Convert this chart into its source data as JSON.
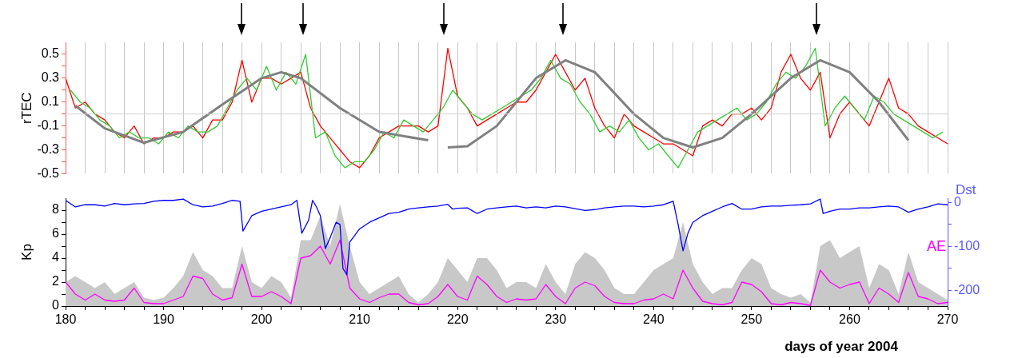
{
  "chart_data": [
    {
      "type": "line",
      "ylabel": "rTEC",
      "xlim": [
        180,
        270
      ],
      "xticks": [
        180,
        182,
        184,
        186,
        188,
        190,
        192,
        194,
        196,
        198,
        200,
        202,
        204,
        206,
        208,
        210,
        212,
        214,
        216,
        218,
        220,
        222,
        224,
        226,
        228,
        230,
        232,
        234,
        236,
        238,
        240,
        242,
        244,
        246,
        248,
        250,
        252,
        254,
        256,
        258,
        260,
        262,
        264,
        266,
        268,
        270
      ],
      "ylim": [
        -0.5,
        0.6
      ],
      "yticks": [
        -0.5,
        {
          "value": -0.4,
          "label": null
        },
        -0.3,
        {
          "value": -0.2,
          "label": null
        },
        -0.1,
        {
          "value": 0,
          "label": null
        },
        0.1,
        {
          "value": 0.2,
          "label": null
        },
        0.3,
        {
          "value": 0.4,
          "label": null
        },
        0.5
      ],
      "tick_labels": "y",
      "grid": "x",
      "ref_lines": [
        {
          "axis": "y",
          "value": 0,
          "color": "#d0d0d0"
        }
      ],
      "series": [
        {
          "color": "#ff0000",
          "x": [
            180,
            181,
            182,
            183,
            184,
            185,
            186,
            187,
            188,
            189,
            190,
            191,
            192,
            193,
            194,
            195,
            196,
            197,
            198,
            199,
            200,
            201,
            202,
            203,
            204,
            205,
            206,
            207,
            208,
            209,
            210,
            211,
            212,
            213,
            214,
            215,
            216,
            217,
            218,
            219,
            220,
            221,
            222,
            223,
            224,
            225,
            226,
            227,
            228,
            229,
            230,
            231,
            232,
            233,
            234,
            235,
            236,
            237,
            238,
            239,
            240,
            241,
            242,
            243,
            244,
            245,
            246,
            247,
            248,
            249,
            250,
            251,
            252,
            253,
            254,
            255,
            256,
            257,
            258,
            259,
            260,
            261,
            262,
            263,
            264,
            265,
            266,
            267,
            268,
            269,
            270
          ],
          "values": [
            0.3,
            0.05,
            0.1,
            0.0,
            -0.05,
            -0.15,
            -0.2,
            -0.1,
            -0.25,
            -0.2,
            -0.2,
            -0.15,
            -0.15,
            -0.1,
            -0.2,
            -0.05,
            -0.05,
            0.1,
            0.45,
            0.1,
            0.3,
            0.3,
            0.25,
            0.3,
            0.35,
            0.05,
            -0.1,
            -0.2,
            -0.3,
            -0.4,
            -0.45,
            -0.35,
            -0.2,
            -0.15,
            -0.1,
            -0.1,
            -0.1,
            -0.15,
            -0.1,
            0.55,
            0.15,
            0.05,
            -0.1,
            -0.05,
            0.0,
            0.05,
            0.1,
            0.1,
            0.2,
            0.35,
            0.5,
            0.35,
            0.2,
            0.3,
            0.05,
            -0.1,
            -0.2,
            0.0,
            -0.1,
            -0.15,
            -0.2,
            -0.25,
            -0.25,
            -0.3,
            -0.35,
            -0.1,
            -0.05,
            -0.1,
            0.0,
            0.0,
            0.05,
            -0.05,
            0.05,
            0.35,
            0.5,
            0.3,
            0.2,
            0.35,
            -0.2,
            0.0,
            0.1,
            0.0,
            -0.1,
            0.1,
            0.3,
            0.05,
            0.0,
            -0.1,
            -0.15,
            -0.2,
            -0.25
          ]
        },
        {
          "color": "#33cc33",
          "x": [
            180.5,
            181.5,
            182.5,
            183.5,
            184.5,
            185.5,
            186.5,
            187.5,
            188.5,
            189.5,
            190.5,
            191.5,
            192.5,
            193.5,
            194.5,
            195.5,
            196.5,
            197.5,
            198.5,
            199.5,
            200.5,
            201.5,
            202.5,
            203.5,
            204.5,
            205.5,
            206.5,
            207.5,
            208.5,
            209.5,
            210.5,
            211.5,
            212.5,
            213.5,
            214.5,
            215.5,
            216.5,
            217.5,
            218.5,
            219.5,
            220.5,
            221.5,
            222.5,
            223.5,
            224.5,
            225.5,
            226.5,
            227.5,
            228.5,
            229.5,
            230.5,
            231.5,
            232.5,
            233.5,
            234.5,
            235.5,
            236.5,
            237.5,
            238.5,
            239.5,
            240.5,
            241.5,
            242.5,
            243.5,
            244.5,
            245.5,
            246.5,
            247.5,
            248.5,
            249.5,
            250.5,
            251.5,
            252.5,
            253.5,
            254.5,
            255.5,
            256.5,
            257.5,
            258.5,
            259.5,
            260.5,
            261.5,
            262.5,
            263.5,
            264.5,
            265.5,
            266.5,
            267.5,
            268.5,
            269.5
          ],
          "values": [
            0.2,
            0.1,
            0.05,
            -0.05,
            -0.1,
            -0.2,
            -0.15,
            -0.2,
            -0.2,
            -0.25,
            -0.15,
            -0.2,
            -0.1,
            -0.15,
            -0.15,
            -0.1,
            0.05,
            0.2,
            0.3,
            0.2,
            0.4,
            0.2,
            0.35,
            0.25,
            0.5,
            -0.2,
            -0.15,
            -0.35,
            -0.45,
            -0.4,
            -0.4,
            -0.3,
            -0.15,
            -0.2,
            -0.05,
            -0.1,
            -0.15,
            -0.05,
            0.05,
            0.2,
            0.1,
            0.0,
            -0.05,
            0.0,
            0.05,
            0.1,
            0.15,
            0.2,
            0.3,
            0.45,
            0.3,
            0.25,
            0.1,
            0.0,
            -0.15,
            -0.1,
            -0.15,
            -0.05,
            -0.2,
            -0.3,
            -0.25,
            -0.35,
            -0.45,
            -0.3,
            -0.15,
            -0.1,
            -0.05,
            0.0,
            0.05,
            -0.05,
            0.0,
            0.1,
            0.25,
            0.35,
            0.3,
            0.4,
            0.55,
            -0.1,
            0.05,
            0.15,
            0.05,
            -0.05,
            0.15,
            0.1,
            0.0,
            -0.05,
            -0.1,
            -0.15,
            -0.2,
            -0.15
          ]
        },
        {
          "color": "#808080",
          "x": [
            181,
            184,
            188,
            192,
            196,
            200,
            202,
            204,
            208,
            212,
            217,
            218,
            219,
            221,
            224,
            228,
            231,
            234,
            238,
            241,
            244,
            247,
            250,
            254,
            257,
            260,
            263,
            266
          ],
          "values": [
            0.07,
            -0.12,
            -0.24,
            -0.15,
            0.08,
            0.3,
            0.35,
            0.3,
            0.05,
            -0.15,
            -0.22,
            null,
            -0.28,
            -0.27,
            -0.1,
            0.3,
            0.45,
            0.35,
            0.0,
            -0.2,
            -0.28,
            -0.2,
            0.0,
            0.3,
            0.45,
            0.35,
            0.1,
            -0.22
          ]
        }
      ]
    },
    {
      "type": "line",
      "xlabel": "days of year 2004",
      "ylabel": "Kp",
      "y2label": "Dst",
      "xlim": [
        180,
        270
      ],
      "xticks": [
        180,
        {
          "value": 182,
          "label": null
        },
        {
          "value": 184,
          "label": null
        },
        {
          "value": 186,
          "label": null
        },
        {
          "value": 188,
          "label": null
        },
        190,
        {
          "value": 192,
          "label": null
        },
        {
          "value": 194,
          "label": null
        },
        {
          "value": 196,
          "label": null
        },
        {
          "value": 198,
          "label": null
        },
        200,
        {
          "value": 202,
          "label": null
        },
        {
          "value": 204,
          "label": null
        },
        {
          "value": 206,
          "label": null
        },
        {
          "value": 208,
          "label": null
        },
        210,
        {
          "value": 212,
          "label": null
        },
        {
          "value": 214,
          "label": null
        },
        {
          "value": 216,
          "label": null
        },
        {
          "value": 218,
          "label": null
        },
        220,
        {
          "value": 222,
          "label": null
        },
        {
          "value": 224,
          "label": null
        },
        {
          "value": 226,
          "label": null
        },
        {
          "value": 228,
          "label": null
        },
        230,
        {
          "value": 232,
          "label": null
        },
        {
          "value": 234,
          "label": null
        },
        {
          "value": 236,
          "label": null
        },
        {
          "value": 238,
          "label": null
        },
        240,
        {
          "value": 242,
          "label": null
        },
        {
          "value": 244,
          "label": null
        },
        {
          "value": 246,
          "label": null
        },
        {
          "value": 248,
          "label": null
        },
        250,
        {
          "value": 252,
          "label": null
        },
        {
          "value": 254,
          "label": null
        },
        {
          "value": 256,
          "label": null
        },
        {
          "value": 258,
          "label": null
        },
        260,
        {
          "value": 262,
          "label": null
        },
        {
          "value": 264,
          "label": null
        },
        {
          "value": 266,
          "label": null
        },
        {
          "value": 268,
          "label": null
        },
        270
      ],
      "ylim": [
        0,
        9
      ],
      "yticks": [
        0,
        {
          "value": 1,
          "label": null
        },
        2,
        {
          "value": 3,
          "label": null
        },
        4,
        {
          "value": 5,
          "label": null
        },
        6,
        {
          "value": 7,
          "label": null
        },
        8
      ],
      "y2lim": [
        -236,
        10
      ],
      "y2ticks": [
        0,
        {
          "value": -50,
          "label": null
        },
        -100,
        {
          "value": -150,
          "label": null
        },
        -200
      ],
      "series": [
        {
          "type": "area",
          "color": "#c8c8c8",
          "x": [
            180,
            181,
            182,
            183,
            184,
            185,
            186,
            187,
            188,
            189,
            190,
            191,
            192,
            193,
            194,
            195,
            196,
            197,
            198,
            199,
            200,
            201,
            202,
            203,
            204,
            205,
            206,
            207,
            208,
            209,
            210,
            211,
            212,
            213,
            214,
            215,
            216,
            217,
            218,
            219,
            220,
            221,
            222,
            223,
            224,
            225,
            226,
            227,
            228,
            229,
            230,
            231,
            232,
            233,
            234,
            235,
            236,
            237,
            238,
            239,
            240,
            241,
            242,
            243,
            244,
            245,
            246,
            247,
            248,
            249,
            250,
            251,
            252,
            253,
            254,
            255,
            256,
            257,
            258,
            259,
            260,
            261,
            262,
            263,
            264,
            265,
            266,
            267,
            268,
            269,
            270
          ],
          "values": [
            2,
            2.5,
            2,
            1.5,
            2,
            1,
            1.5,
            2,
            0.7,
            0.5,
            0.7,
            1.5,
            2.5,
            4.5,
            3,
            2.5,
            1.5,
            1.5,
            5,
            2,
            1.5,
            2.5,
            2,
            0.7,
            5.5,
            5.5,
            7.5,
            5,
            8.5,
            5,
            2,
            1,
            1.5,
            2,
            2.5,
            1,
            0.3,
            1,
            2,
            4,
            3,
            2,
            4,
            4,
            3,
            1.5,
            2,
            2,
            1.5,
            3.5,
            2,
            1,
            3.5,
            4.5,
            4,
            3,
            1.5,
            1,
            1,
            2,
            3,
            3.5,
            4,
            7,
            3.5,
            2,
            1,
            1.5,
            1.5,
            3,
            4,
            3.5,
            1.5,
            1,
            0.7,
            1,
            0.3,
            5,
            5.5,
            4,
            4.5,
            5,
            1.5,
            3.5,
            3,
            1,
            4.5,
            2,
            1.5,
            1,
            0.5
          ]
        },
        {
          "name": "AE",
          "color": "#ff00ff",
          "x": [
            180,
            181,
            182,
            183,
            184,
            185,
            186,
            187,
            188,
            189,
            190,
            191,
            192,
            193,
            194,
            195,
            196,
            197,
            198,
            199,
            200,
            201,
            202,
            203,
            204,
            205,
            206,
            207,
            208,
            209,
            210,
            211,
            212,
            213,
            214,
            215,
            216,
            217,
            218,
            219,
            220,
            221,
            222,
            223,
            224,
            225,
            226,
            227,
            228,
            229,
            230,
            231,
            232,
            233,
            234,
            235,
            236,
            237,
            238,
            239,
            240,
            241,
            242,
            243,
            244,
            245,
            246,
            247,
            248,
            249,
            250,
            251,
            252,
            253,
            254,
            255,
            256,
            257,
            258,
            259,
            260,
            261,
            262,
            263,
            264,
            265,
            266,
            267,
            268,
            269,
            270
          ],
          "values": [
            2,
            1,
            0.5,
            1,
            0.5,
            0.4,
            0.5,
            1.5,
            0.3,
            0.2,
            0.2,
            0.5,
            0.8,
            2.5,
            2.3,
            1,
            0.5,
            0.7,
            3.5,
            0.8,
            0.8,
            1.2,
            0.8,
            0.2,
            4,
            4.2,
            5,
            3.5,
            5.5,
            1.5,
            0.6,
            0.3,
            0.7,
            1,
            1,
            0.3,
            0.1,
            0.2,
            0.8,
            1.8,
            0.8,
            0.5,
            2.5,
            1.8,
            0.8,
            0.3,
            0.6,
            0.5,
            0.6,
            1.8,
            0.8,
            0.2,
            1.5,
            2,
            1.7,
            0.8,
            0.3,
            0.2,
            0.2,
            0.5,
            0.6,
            1,
            0.6,
            3,
            1.5,
            0.4,
            0.2,
            0.1,
            0.3,
            2,
            1.8,
            1.2,
            0.2,
            0.1,
            0.3,
            0.2,
            0.05,
            3,
            2,
            1.5,
            1.8,
            2,
            0.2,
            1.5,
            1,
            0.3,
            2.8,
            0.8,
            0.6,
            0.2,
            0.3
          ]
        },
        {
          "axis": "y2",
          "color": "#0000ff",
          "x": [
            180,
            181,
            182,
            183,
            184,
            185,
            186,
            187,
            188,
            189,
            190,
            191,
            192,
            193,
            194,
            195,
            196,
            197,
            197.8,
            198.1,
            199,
            200,
            201,
            202,
            203,
            203.6,
            204.1,
            204.8,
            205.2,
            205.6,
            206,
            206.5,
            207,
            207.6,
            208,
            208.3,
            208.7,
            209,
            210,
            211,
            212,
            213,
            214,
            215,
            216,
            217,
            218,
            219,
            219.5,
            220,
            221,
            222,
            223,
            224,
            225,
            226,
            227,
            228,
            229,
            230,
            231,
            232,
            233,
            234,
            235,
            236,
            237,
            238,
            239,
            240,
            241,
            242,
            242.5,
            243,
            243.5,
            244,
            245,
            246,
            247,
            248,
            249,
            250,
            251,
            252,
            253,
            254,
            255,
            256,
            257,
            257.3,
            258,
            259,
            260,
            261,
            262,
            263,
            264,
            265,
            266,
            267,
            268,
            269,
            270
          ],
          "values": [
            5,
            -10,
            -5,
            -5,
            -8,
            -2,
            -5,
            -3,
            -2,
            3,
            5,
            5,
            8,
            -5,
            -10,
            -8,
            -2,
            5,
            3,
            -65,
            -30,
            -20,
            -15,
            -10,
            -5,
            5,
            -70,
            -40,
            5,
            -10,
            -30,
            -105,
            -80,
            -45,
            -50,
            -150,
            -165,
            -90,
            -60,
            -45,
            -35,
            -25,
            -22,
            -15,
            -12,
            -10,
            -8,
            -4,
            -15,
            -13,
            -12,
            -25,
            -15,
            -12,
            -10,
            -8,
            -12,
            -10,
            -12,
            -8,
            -10,
            -14,
            -18,
            -16,
            -12,
            -10,
            -8,
            -8,
            -10,
            -8,
            -5,
            3,
            -50,
            -110,
            -70,
            -45,
            -30,
            -20,
            -10,
            -2,
            -15,
            -15,
            -10,
            -8,
            -8,
            -6,
            -5,
            -3,
            8,
            -25,
            -20,
            -15,
            -15,
            -12,
            -12,
            -10,
            -8,
            -10,
            -22,
            -15,
            -10,
            -3,
            -5
          ]
        }
      ]
    }
  ]
}
